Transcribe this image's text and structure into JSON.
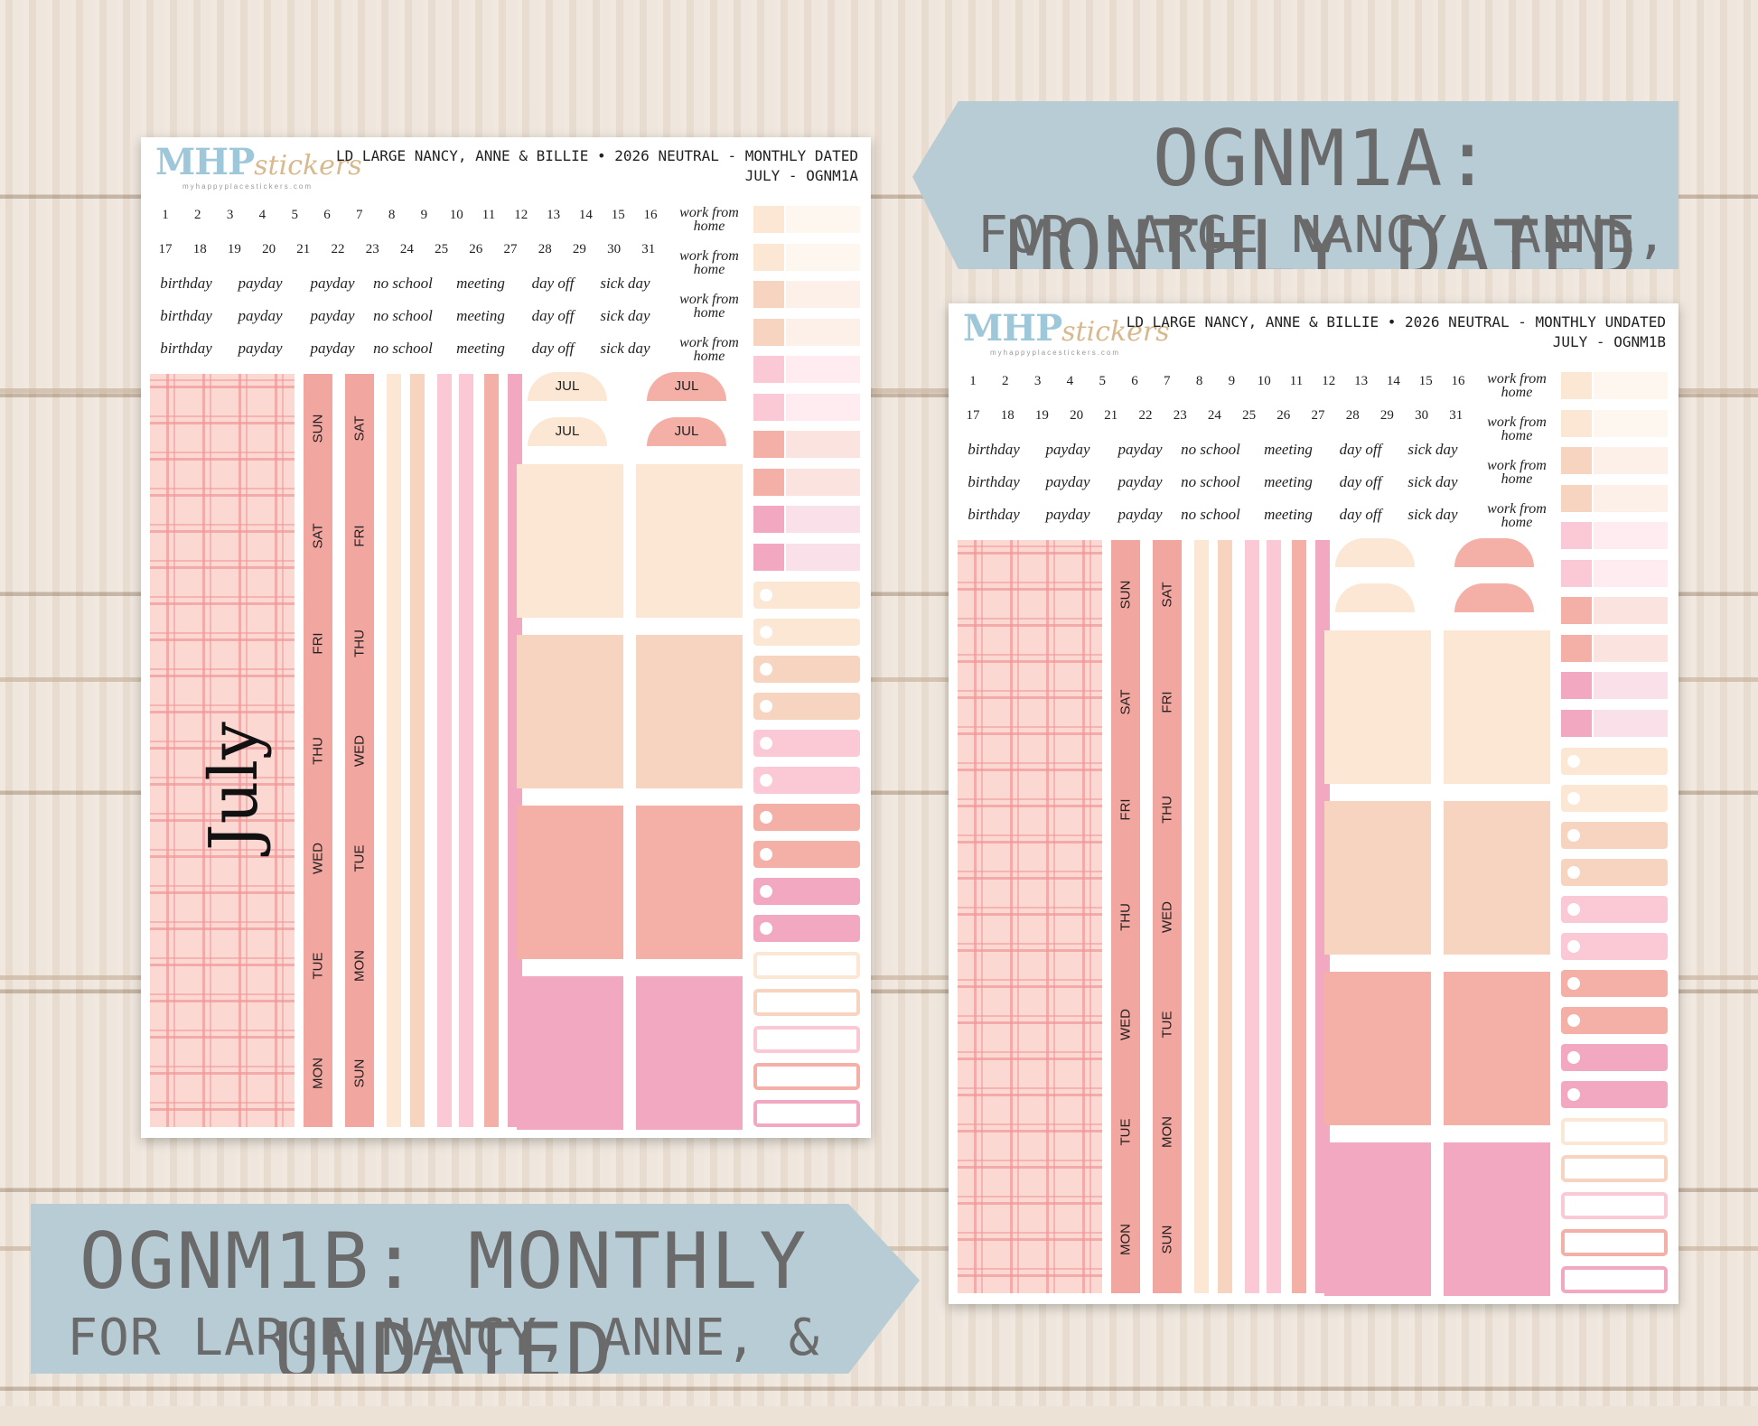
{
  "banner_a": {
    "line1": "OGNM1A: MONTHLY DATED",
    "line2": "FOR LARGE NANCY, ANNE, & BILLIE"
  },
  "banner_b": {
    "line1": "OGNM1B: MONTHLY UNDATED",
    "line2": "FOR LARGE NANCY, ANNE, & BILLIE"
  },
  "sheet_a": {
    "logo_main": "MHP",
    "logo_script": "stickers",
    "logo_url": "myhappyplacestickers.com",
    "header_line1": "LD LARGE NANCY, ANNE & BILLIE • 2026 NEUTRAL - MONTHLY DATED",
    "header_line2": "JULY - OGNM1A",
    "month_label": "July",
    "half_label": "JUL"
  },
  "sheet_b": {
    "logo_main": "MHP",
    "logo_script": "stickers",
    "logo_url": "myhappyplacestickers.com",
    "header_line1": "LD LARGE NANCY, ANNE & BILLIE • 2026 NEUTRAL - MONTHLY UNDATED",
    "header_line2": "JULY - OGNM1B"
  },
  "numbers_row1": [
    "1",
    "2",
    "3",
    "4",
    "5",
    "6",
    "7",
    "8",
    "9",
    "10",
    "11",
    "12",
    "13",
    "14",
    "15",
    "16"
  ],
  "numbers_row2": [
    "17",
    "18",
    "19",
    "20",
    "21",
    "22",
    "23",
    "24",
    "25",
    "26",
    "27",
    "28",
    "29",
    "30",
    "31"
  ],
  "words": [
    "birthday",
    "payday",
    "payday",
    "no school",
    "meeting",
    "day off",
    "sick day"
  ],
  "wfh": "work from home",
  "strip_a1": [
    "MON",
    "TUE",
    "WED",
    "THU",
    "FRI",
    "SAT",
    "SUN"
  ],
  "strip_a2": [
    "SUN",
    "MON",
    "TUE",
    "WED",
    "THU",
    "FRI",
    "SAT"
  ],
  "strip_b1": [
    "MON",
    "TUE",
    "WED",
    "THU",
    "FRI",
    "SAT",
    "SUN"
  ],
  "strip_b2": [
    "SUN",
    "MON",
    "TUE",
    "WED",
    "THU",
    "FRI",
    "SAT"
  ],
  "colors": {
    "peach_light": "#fbe7d3",
    "peach": "#f7d4c0",
    "salmon": "#f4afa6",
    "pink": "#f2a8c1",
    "pink_light": "#fbc9d5",
    "strip": "#f1a6a0",
    "banner": "#b8ccd5"
  }
}
